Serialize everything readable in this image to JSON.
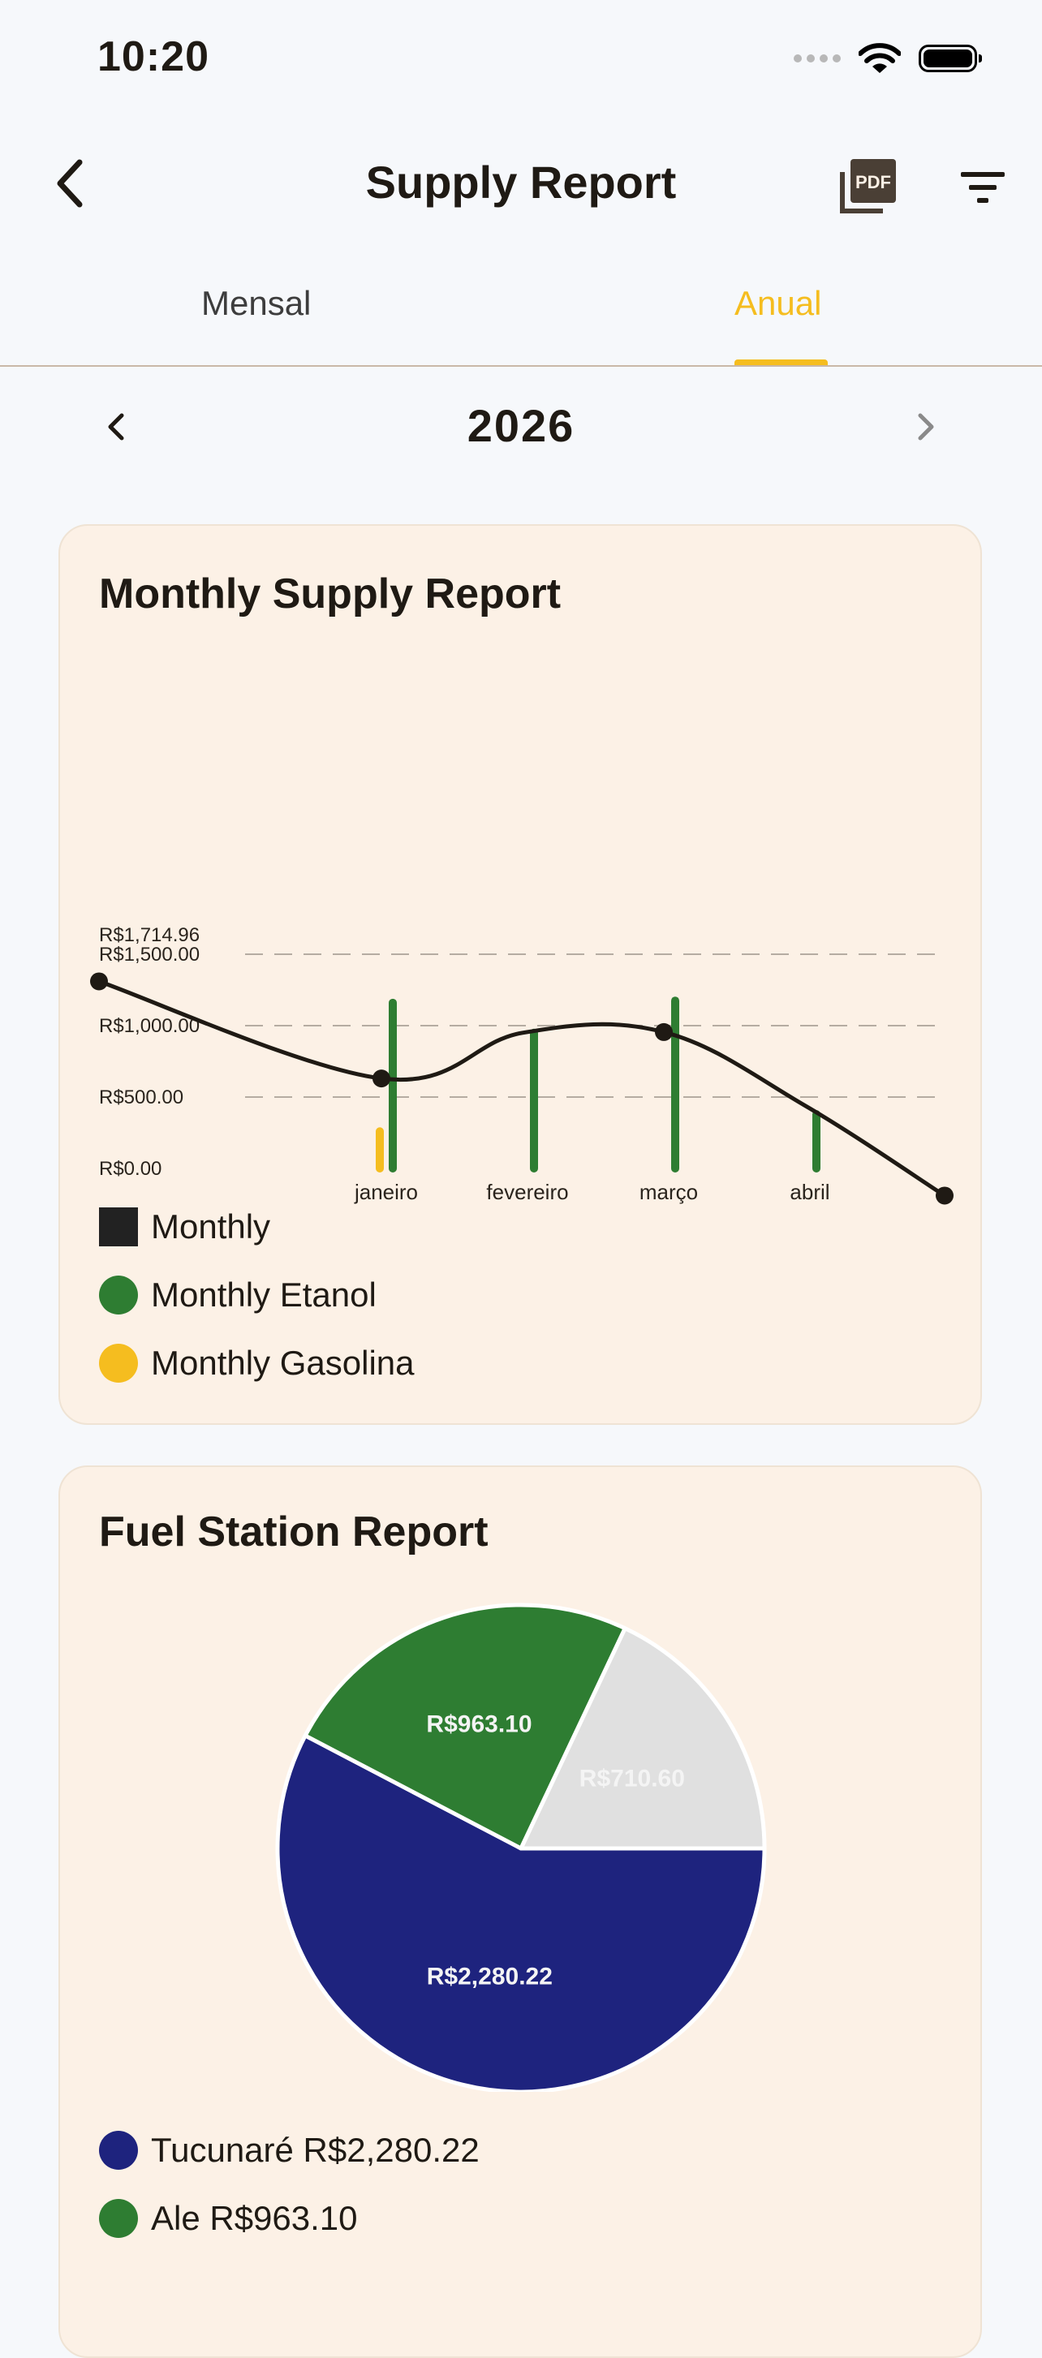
{
  "status_bar": {
    "time": "10:20"
  },
  "header": {
    "title": "Supply Report"
  },
  "tabs": [
    {
      "label": "Mensal",
      "active": false
    },
    {
      "label": "Anual",
      "active": true
    }
  ],
  "year_selector": {
    "year": "2026"
  },
  "colors": {
    "accent": "#f5bd1f",
    "monthly": "#1f1a14",
    "etanol": "#2e7d32",
    "gasolina": "#f5bd1f",
    "card_bg": "#fcf1e6"
  },
  "monthly_card": {
    "title": "Monthly Supply Report",
    "legend": [
      "Monthly",
      "Monthly Etanol",
      "Monthly Gasolina"
    ]
  },
  "station_card": {
    "title": "Fuel Station Report",
    "legend": [
      "Tucunaré R$2,280.22",
      "Ale R$963.10"
    ]
  },
  "chart_data": [
    {
      "type": "bar",
      "title": "Monthly Supply Report",
      "max_label": "R$1,714.96",
      "y_ticks": [
        {
          "value": 0,
          "label": "R$0.00"
        },
        {
          "value": 500,
          "label": "R$500.00"
        },
        {
          "value": 1000,
          "label": "R$1,000.00"
        },
        {
          "value": 1500,
          "label": "R$1,500.00"
        }
      ],
      "ylim": [
        0,
        1714.96
      ],
      "categories": [
        "janeiro",
        "fevereiro",
        "março",
        "abril"
      ],
      "series": [
        {
          "name": "Monthly Etanol",
          "kind": "bar",
          "color": "#2e7d32",
          "values": [
            1160,
            950,
            1175,
            380
          ]
        },
        {
          "name": "Monthly Gasolina",
          "kind": "bar",
          "color": "#f5bd1f",
          "values": [
            260,
            0,
            0,
            0
          ]
        },
        {
          "name": "Monthly",
          "kind": "line",
          "color": "#1f1a14",
          "x": [
            -1,
            0,
            1,
            2,
            3,
            4
          ],
          "values": [
            1310,
            630,
            950,
            955,
            440,
            -190
          ]
        }
      ],
      "grid": true,
      "legend_position": "bottom-left"
    },
    {
      "type": "pie",
      "title": "Fuel Station Report",
      "slices": [
        {
          "name": "Tucunaré",
          "value": 2280.22,
          "label": "R$2,280.22",
          "color": "#1e237e"
        },
        {
          "name": "Ale",
          "value": 963.1,
          "label": "R$963.10",
          "color": "#2e7d32"
        },
        {
          "name": "",
          "value": 710.6,
          "label": "R$710.60",
          "color": "#e0e0e0"
        }
      ]
    }
  ]
}
